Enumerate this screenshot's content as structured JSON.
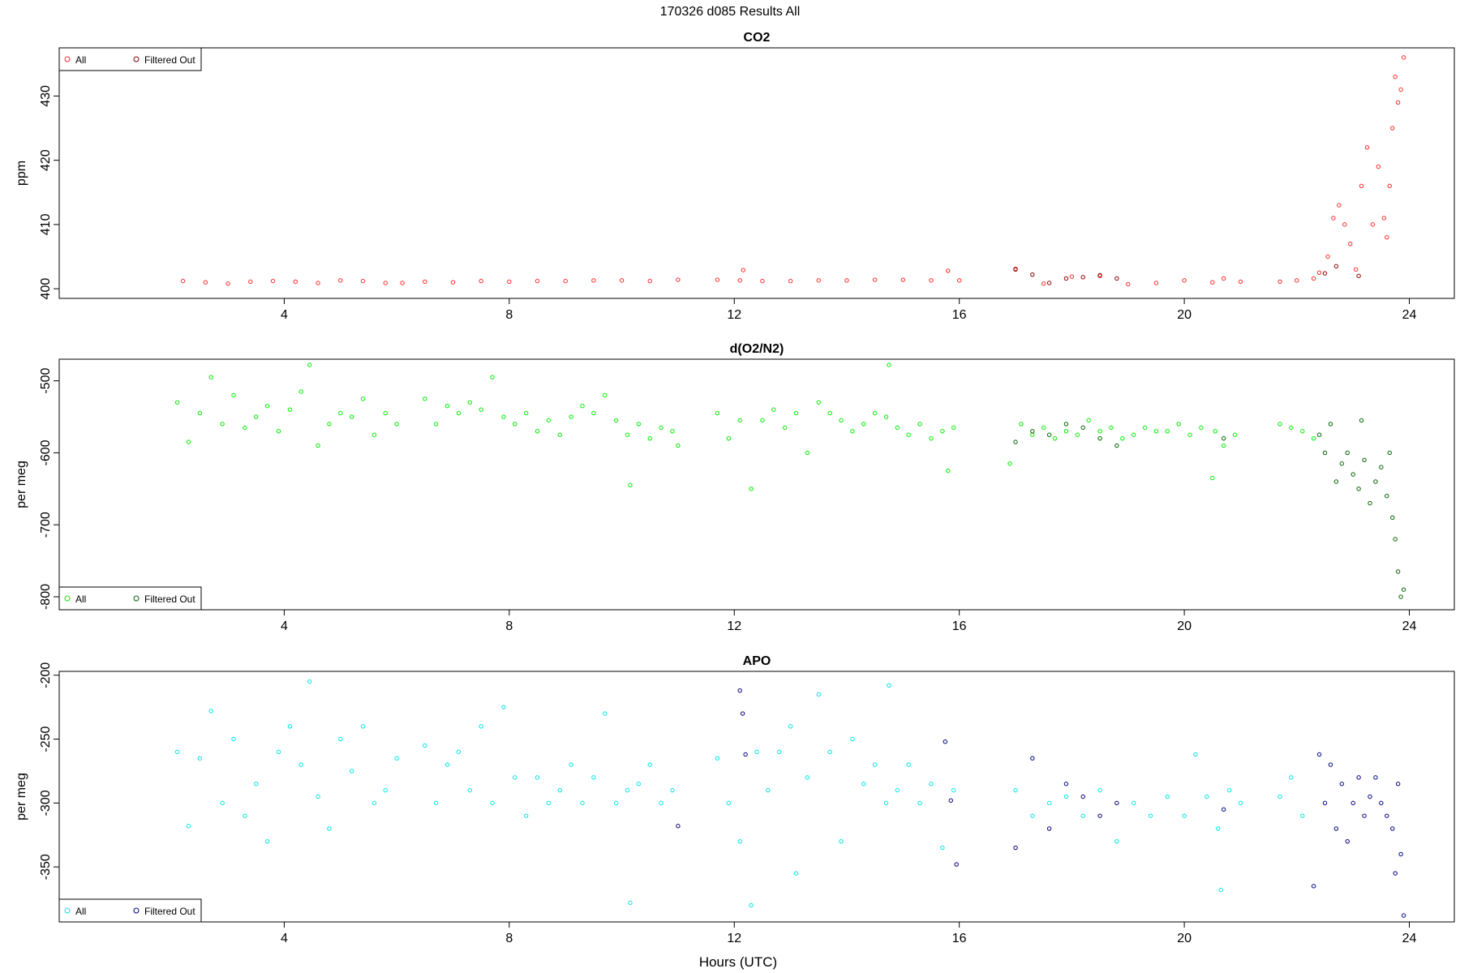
{
  "figure": {
    "title": "170326   d085   Results All",
    "xlabel": "Hours (UTC)"
  },
  "colors": {
    "co2_all": "#ff2a2a",
    "co2_filtered": "#8b0000",
    "o2_all": "#00ee00",
    "o2_filtered": "#006400",
    "apo_all": "#00e5e5",
    "apo_filtered": "#000080"
  },
  "chart_data": [
    {
      "type": "scatter",
      "title": "CO2",
      "ylabel": "ppm",
      "xlabel": "",
      "xlim": [
        0.0,
        24.8
      ],
      "ylim": [
        398.5,
        437.5
      ],
      "x_ticks": [
        4,
        8,
        12,
        16,
        20,
        24
      ],
      "y_ticks": [
        400,
        410,
        420,
        430
      ],
      "legend": {
        "placement": "top-left",
        "entries": [
          "All",
          "Filtered Out"
        ]
      },
      "series": [
        {
          "name": "All",
          "x": [
            2.2,
            2.6,
            3.0,
            3.4,
            3.8,
            4.2,
            4.6,
            5.0,
            5.4,
            5.8,
            6.1,
            6.5,
            7.0,
            7.5,
            8.0,
            8.5,
            9.0,
            9.5,
            10.0,
            10.5,
            11.0,
            11.7,
            12.1,
            12.16,
            12.5,
            13.0,
            13.5,
            14.0,
            14.5,
            15.0,
            15.5,
            15.8,
            16.0,
            17.0,
            17.5,
            18.0,
            18.5,
            19.0,
            19.5,
            20.0,
            20.5,
            20.7,
            21.0,
            21.7,
            22.0,
            22.3,
            22.4,
            22.55,
            22.65,
            22.75,
            22.85,
            22.95,
            23.05,
            23.15,
            23.25,
            23.35,
            23.45,
            23.55,
            23.6,
            23.65,
            23.7,
            23.75,
            23.8,
            23.85,
            23.9
          ],
          "y": [
            401.2,
            401.0,
            400.8,
            401.1,
            401.2,
            401.1,
            400.9,
            401.3,
            401.2,
            400.9,
            400.9,
            401.1,
            401.0,
            401.2,
            401.1,
            401.2,
            401.2,
            401.3,
            401.3,
            401.2,
            401.4,
            401.4,
            401.3,
            402.9,
            401.2,
            401.2,
            401.3,
            401.3,
            401.4,
            401.4,
            401.3,
            402.8,
            401.3,
            403.1,
            400.8,
            401.9,
            402.0,
            400.7,
            400.9,
            401.3,
            401.0,
            401.6,
            401.1,
            401.1,
            401.3,
            401.6,
            402.5,
            405.0,
            411.0,
            413.0,
            410.0,
            407.0,
            403.0,
            416.0,
            422.0,
            410.0,
            419.0,
            411.0,
            408.0,
            416.0,
            425.0,
            433.0,
            429.0,
            431.0,
            436.0
          ]
        },
        {
          "name": "Filtered Out",
          "x": [
            17.0,
            17.3,
            17.6,
            17.9,
            18.2,
            18.5,
            18.8,
            22.5,
            22.7,
            23.1
          ],
          "y": [
            403.0,
            402.2,
            400.9,
            401.6,
            401.8,
            402.1,
            401.6,
            402.4,
            403.5,
            402.0
          ]
        }
      ]
    },
    {
      "type": "scatter",
      "title": "d(O2/N2)",
      "ylabel": "per meg",
      "xlabel": "",
      "xlim": [
        0.0,
        24.8
      ],
      "ylim": [
        -818,
        -470
      ],
      "x_ticks": [
        4,
        8,
        12,
        16,
        20,
        24
      ],
      "y_ticks": [
        -500,
        -600,
        -700,
        -800
      ],
      "legend": {
        "placement": "bottom-left",
        "entries": [
          "All",
          "Filtered Out"
        ]
      },
      "series": [
        {
          "name": "All",
          "x": [
            2.1,
            2.3,
            2.5,
            2.7,
            2.9,
            3.1,
            3.3,
            3.5,
            3.7,
            3.9,
            4.1,
            4.3,
            4.45,
            4.6,
            4.8,
            5.0,
            5.2,
            5.4,
            5.6,
            5.8,
            6.0,
            6.5,
            6.7,
            6.9,
            7.1,
            7.3,
            7.5,
            7.7,
            7.9,
            8.1,
            8.3,
            8.5,
            8.7,
            8.9,
            9.1,
            9.3,
            9.5,
            9.7,
            9.9,
            10.1,
            10.15,
            10.3,
            10.5,
            10.7,
            10.9,
            11.0,
            11.7,
            11.9,
            12.1,
            12.3,
            12.5,
            12.7,
            12.9,
            13.1,
            13.3,
            13.5,
            13.7,
            13.9,
            14.1,
            14.3,
            14.5,
            14.7,
            14.75,
            14.9,
            15.1,
            15.3,
            15.5,
            15.7,
            15.8,
            15.9,
            16.9,
            17.1,
            17.3,
            17.5,
            17.7,
            17.9,
            18.1,
            18.3,
            18.5,
            18.7,
            18.9,
            19.1,
            19.3,
            19.5,
            19.7,
            19.9,
            20.1,
            20.3,
            20.5,
            20.55,
            20.7,
            20.9,
            21.7,
            21.9,
            22.1,
            22.3
          ],
          "y": [
            -530,
            -585,
            -545,
            -495,
            -560,
            -520,
            -565,
            -550,
            -535,
            -570,
            -540,
            -515,
            -478,
            -590,
            -560,
            -545,
            -550,
            -525,
            -575,
            -545,
            -560,
            -525,
            -560,
            -535,
            -545,
            -530,
            -540,
            -495,
            -550,
            -560,
            -545,
            -570,
            -555,
            -575,
            -550,
            -535,
            -545,
            -520,
            -555,
            -575,
            -645,
            -560,
            -580,
            -565,
            -570,
            -590,
            -545,
            -580,
            -555,
            -650,
            -555,
            -540,
            -565,
            -545,
            -600,
            -530,
            -545,
            -555,
            -570,
            -560,
            -545,
            -550,
            -478,
            -565,
            -575,
            -560,
            -580,
            -570,
            -625,
            -565,
            -615,
            -560,
            -575,
            -565,
            -580,
            -570,
            -575,
            -555,
            -570,
            -565,
            -580,
            -575,
            -565,
            -570,
            -570,
            -560,
            -575,
            -565,
            -635,
            -570,
            -590,
            -575,
            -560,
            -565,
            -570,
            -580
          ]
        },
        {
          "name": "Filtered Out",
          "x": [
            17.0,
            17.3,
            17.6,
            17.9,
            18.2,
            18.5,
            18.8,
            20.7,
            22.4,
            22.5,
            22.6,
            22.7,
            22.8,
            22.9,
            23.0,
            23.1,
            23.15,
            23.2,
            23.3,
            23.4,
            23.5,
            23.6,
            23.65,
            23.7,
            23.75,
            23.8,
            23.85,
            23.9
          ],
          "y": [
            -585,
            -570,
            -575,
            -560,
            -565,
            -580,
            -590,
            -580,
            -575,
            -600,
            -560,
            -640,
            -615,
            -600,
            -630,
            -650,
            -555,
            -610,
            -670,
            -640,
            -620,
            -660,
            -600,
            -690,
            -720,
            -765,
            -800,
            -790
          ]
        }
      ]
    },
    {
      "type": "scatter",
      "title": "APO",
      "ylabel": "per meg",
      "xlabel": "Hours (UTC)",
      "xlim": [
        0.0,
        24.8
      ],
      "ylim": [
        -393,
        -197
      ],
      "x_ticks": [
        4,
        8,
        12,
        16,
        20,
        24
      ],
      "y_ticks": [
        -200,
        -250,
        -300,
        -350
      ],
      "legend": {
        "placement": "bottom-left",
        "entries": [
          "All",
          "Filtered Out"
        ]
      },
      "series": [
        {
          "name": "All",
          "x": [
            2.1,
            2.3,
            2.5,
            2.7,
            2.9,
            3.1,
            3.3,
            3.5,
            3.7,
            3.9,
            4.1,
            4.3,
            4.45,
            4.6,
            4.8,
            5.0,
            5.2,
            5.4,
            5.6,
            5.8,
            6.0,
            6.5,
            6.7,
            6.9,
            7.1,
            7.3,
            7.5,
            7.7,
            7.9,
            8.1,
            8.3,
            8.5,
            8.7,
            8.9,
            9.1,
            9.3,
            9.5,
            9.7,
            9.9,
            10.1,
            10.15,
            10.3,
            10.5,
            10.7,
            10.9,
            11.7,
            11.9,
            12.1,
            12.3,
            12.4,
            12.6,
            12.8,
            13.0,
            13.1,
            13.3,
            13.5,
            13.7,
            13.9,
            14.1,
            14.3,
            14.5,
            14.7,
            14.75,
            14.9,
            15.1,
            15.3,
            15.5,
            15.7,
            15.9,
            17.0,
            17.3,
            17.6,
            17.9,
            18.2,
            18.5,
            18.8,
            19.1,
            19.4,
            19.7,
            20.0,
            20.2,
            20.4,
            20.6,
            20.65,
            20.8,
            21.0,
            21.7,
            21.9,
            22.1
          ],
          "y": [
            -260,
            -318,
            -265,
            -228,
            -300,
            -250,
            -310,
            -285,
            -330,
            -260,
            -240,
            -270,
            -205,
            -295,
            -320,
            -250,
            -275,
            -240,
            -300,
            -290,
            -265,
            -255,
            -300,
            -270,
            -260,
            -290,
            -240,
            -300,
            -225,
            -280,
            -310,
            -280,
            -300,
            -290,
            -270,
            -300,
            -280,
            -230,
            -300,
            -290,
            -378,
            -285,
            -270,
            -300,
            -290,
            -265,
            -300,
            -330,
            -380,
            -260,
            -290,
            -260,
            -240,
            -355,
            -280,
            -215,
            -260,
            -330,
            -250,
            -285,
            -270,
            -300,
            -208,
            -290,
            -270,
            -300,
            -285,
            -335,
            -290,
            -290,
            -310,
            -300,
            -295,
            -310,
            -290,
            -330,
            -300,
            -310,
            -295,
            -310,
            -262,
            -295,
            -320,
            -368,
            -290,
            -300,
            -295,
            -280,
            -310
          ]
        },
        {
          "name": "Filtered Out",
          "x": [
            11.0,
            12.1,
            12.15,
            12.2,
            15.75,
            15.85,
            15.95,
            17.0,
            17.3,
            17.6,
            17.9,
            18.2,
            18.5,
            18.8,
            20.7,
            22.3,
            22.4,
            22.5,
            22.6,
            22.7,
            22.8,
            22.9,
            23.0,
            23.1,
            23.2,
            23.3,
            23.4,
            23.5,
            23.6,
            23.7,
            23.75,
            23.8,
            23.85,
            23.9
          ],
          "y": [
            -318,
            -212,
            -230,
            -262,
            -252,
            -298,
            -348,
            -335,
            -265,
            -320,
            -285,
            -295,
            -310,
            -300,
            -305,
            -365,
            -262,
            -300,
            -270,
            -320,
            -285,
            -330,
            -300,
            -280,
            -310,
            -295,
            -280,
            -300,
            -310,
            -320,
            -355,
            -285,
            -340,
            -388
          ]
        }
      ]
    }
  ]
}
